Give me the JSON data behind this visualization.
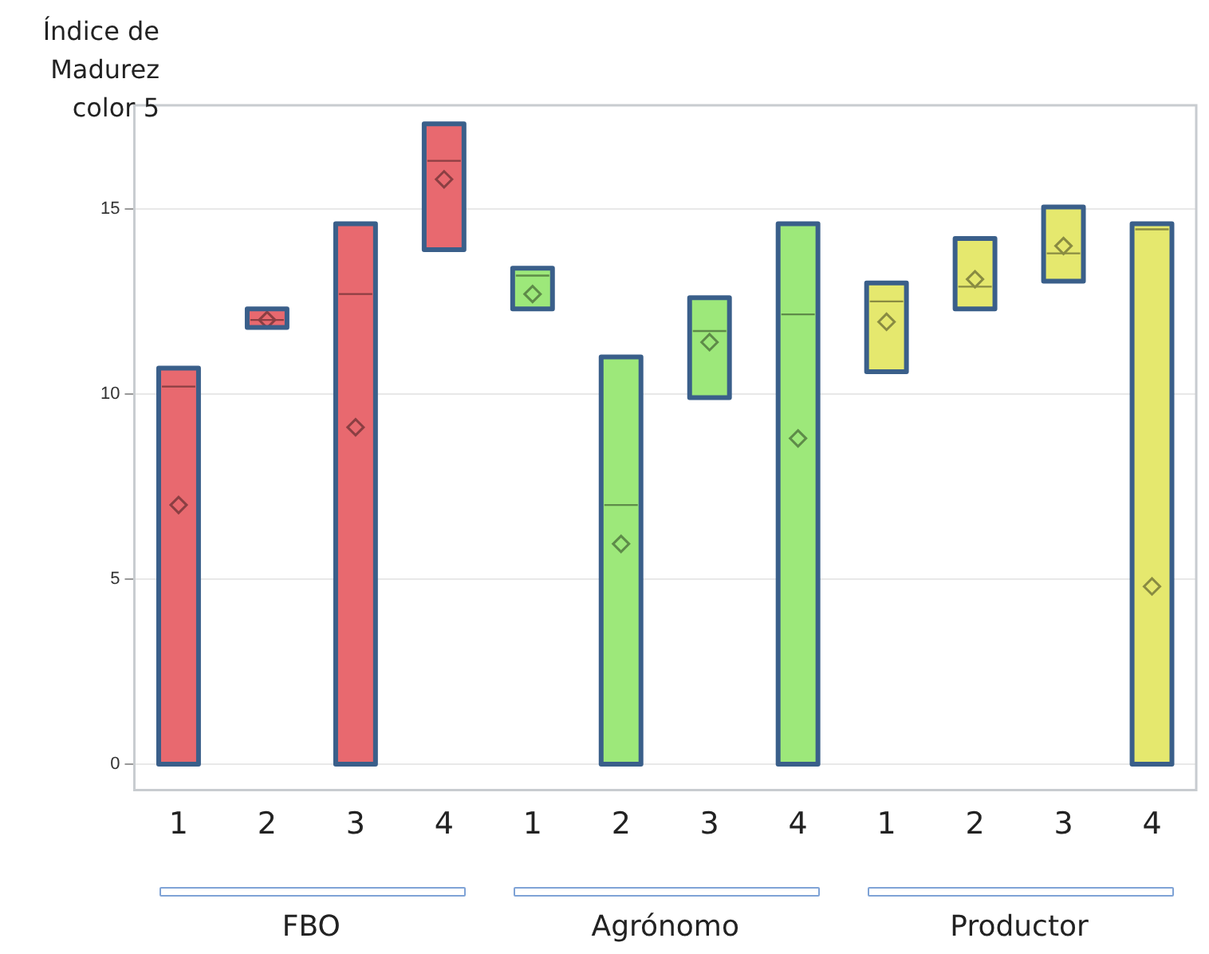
{
  "chart_data": {
    "type": "box",
    "ylabel": "Índice de Madurez color 5",
    "annotations": [
      "FBO",
      "Agrónomo",
      "Productor"
    ],
    "categories": [
      "1",
      "2",
      "3",
      "4",
      "1",
      "2",
      "3",
      "4",
      "1",
      "2",
      "3",
      "4"
    ],
    "ylim": [
      -0.7,
      17.8
    ],
    "yticks": [
      0,
      5,
      10,
      15
    ],
    "grid": "y",
    "legend": false,
    "marker": "diamond",
    "series": [
      {
        "color": "#e8696f",
        "boxes": [
          {
            "low": 0,
            "q1": 0,
            "median": 10.2,
            "q3": 10.7,
            "high": 10.7,
            "mean": 7.0
          },
          {
            "low": 11.8,
            "q1": 11.8,
            "median": 12.0,
            "q3": 12.3,
            "high": 12.3,
            "mean": 12.0
          },
          {
            "low": 0,
            "q1": 0,
            "median": 12.7,
            "q3": 14.6,
            "high": 14.6,
            "mean": 9.1
          },
          {
            "low": 13.9,
            "q1": 13.9,
            "median": 16.3,
            "q3": 17.3,
            "high": 17.3,
            "mean": 15.8
          },
          null,
          null,
          null,
          null,
          null,
          null,
          null,
          null
        ]
      },
      {
        "color": "#9de87a",
        "boxes": [
          null,
          null,
          null,
          null,
          {
            "low": 12.3,
            "q1": 12.3,
            "median": 13.2,
            "q3": 13.4,
            "high": 13.4,
            "mean": 12.7
          },
          {
            "low": 0,
            "q1": 0,
            "median": 7.0,
            "q3": 11.0,
            "high": 11.0,
            "mean": 5.95
          },
          {
            "low": 9.9,
            "q1": 9.9,
            "median": 11.7,
            "q3": 12.6,
            "high": 12.6,
            "mean": 11.4
          },
          {
            "low": 0,
            "q1": 0,
            "median": 12.15,
            "q3": 14.6,
            "high": 14.6,
            "mean": 8.8
          },
          null,
          null,
          null,
          null
        ]
      },
      {
        "color": "#e5e86e",
        "boxes": [
          null,
          null,
          null,
          null,
          null,
          null,
          null,
          null,
          {
            "low": 10.6,
            "q1": 10.6,
            "median": 12.5,
            "q3": 13.0,
            "high": 13.0,
            "mean": 11.95
          },
          {
            "low": 12.3,
            "q1": 12.3,
            "median": 12.9,
            "q3": 14.2,
            "high": 14.2,
            "mean": 13.1
          },
          {
            "low": 13.05,
            "q1": 13.05,
            "median": 13.8,
            "q3": 15.05,
            "high": 15.05,
            "mean": 14.0
          },
          {
            "low": 0,
            "q1": 0,
            "median": 14.45,
            "q3": 14.6,
            "high": 14.6,
            "mean": 4.8
          }
        ]
      }
    ]
  }
}
